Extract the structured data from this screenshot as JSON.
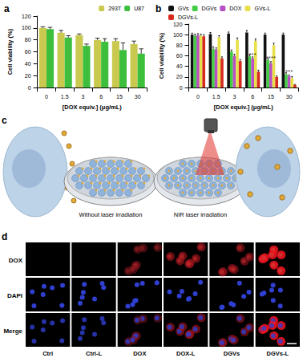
{
  "chart_data": [
    {
      "type": "bar",
      "title": "a",
      "categories": [
        "0",
        "1.5",
        "3",
        "6",
        "15",
        "30"
      ],
      "x_label": "[DOX equiv.] (μg/mL)",
      "y_label": "Cell viability (%)",
      "series": [
        {
          "name": "293T",
          "color": "#c9c94f",
          "values": [
            100,
            92,
            88,
            80,
            78,
            73
          ],
          "errors": [
            2,
            4,
            2,
            3,
            4,
            5
          ]
        },
        {
          "name": "U87",
          "color": "#3dbf3d",
          "values": [
            98,
            84,
            70,
            77,
            63,
            57
          ],
          "errors": [
            3,
            3,
            3,
            5,
            12,
            8
          ]
        }
      ],
      "ylim": [
        0,
        120
      ],
      "yticks": [
        0,
        20,
        40,
        60,
        80,
        100,
        120
      ],
      "grid": false,
      "legend": "top-right"
    },
    {
      "type": "bar",
      "title": "b",
      "categories": [
        "0",
        "1.5",
        "3",
        "6",
        "15",
        "30"
      ],
      "x_label": "[DOX equiv.] (μg/mL)",
      "y_label": "Cell viability (%)",
      "series": [
        {
          "name": "GVs",
          "color": "#111111",
          "values": [
            100,
            101,
            102,
            104,
            100,
            100
          ],
          "errors": [
            3,
            3,
            3,
            4,
            3,
            3
          ]
        },
        {
          "name": "DGVs",
          "color": "#44cc44",
          "values": [
            98,
            73,
            68,
            59,
            52,
            25
          ],
          "errors": [
            3,
            4,
            3,
            3,
            3,
            3
          ]
        },
        {
          "name": "DOX",
          "color": "#b94fc4",
          "values": [
            99,
            72,
            60,
            55,
            46,
            22
          ],
          "errors": [
            3,
            3,
            3,
            3,
            3,
            2
          ]
        },
        {
          "name": "GVs-L",
          "color": "#e8e04a",
          "values": [
            98,
            95,
            90,
            88,
            80,
            18
          ],
          "errors": [
            3,
            3,
            4,
            4,
            4,
            3
          ]
        },
        {
          "name": "DGVs-L",
          "color": "#d62a1e",
          "values": [
            97,
            55,
            50,
            30,
            20,
            5
          ],
          "errors": [
            3,
            3,
            3,
            3,
            2,
            1
          ]
        }
      ],
      "annotations": [
        {
          "category": "6",
          "y": 62,
          "text": "***"
        },
        {
          "category": "15",
          "y": 55,
          "text": "****"
        },
        {
          "category": "30",
          "y": 30,
          "text": "***"
        }
      ],
      "ylim": [
        0,
        120
      ],
      "yticks": [
        0,
        20,
        40,
        60,
        80,
        100,
        120
      ],
      "grid": false,
      "legend": "top"
    }
  ],
  "panel_c": {
    "label": "c",
    "captions": [
      "Without laser irradiation",
      "NIR laser irradiation"
    ]
  },
  "panel_d": {
    "label": "d",
    "rows": [
      "DOX",
      "DAPI",
      "Merge"
    ],
    "columns": [
      "Ctrl",
      "Ctrl-L",
      "DOX",
      "DOX-L",
      "DGVs",
      "DGVs-L"
    ]
  }
}
